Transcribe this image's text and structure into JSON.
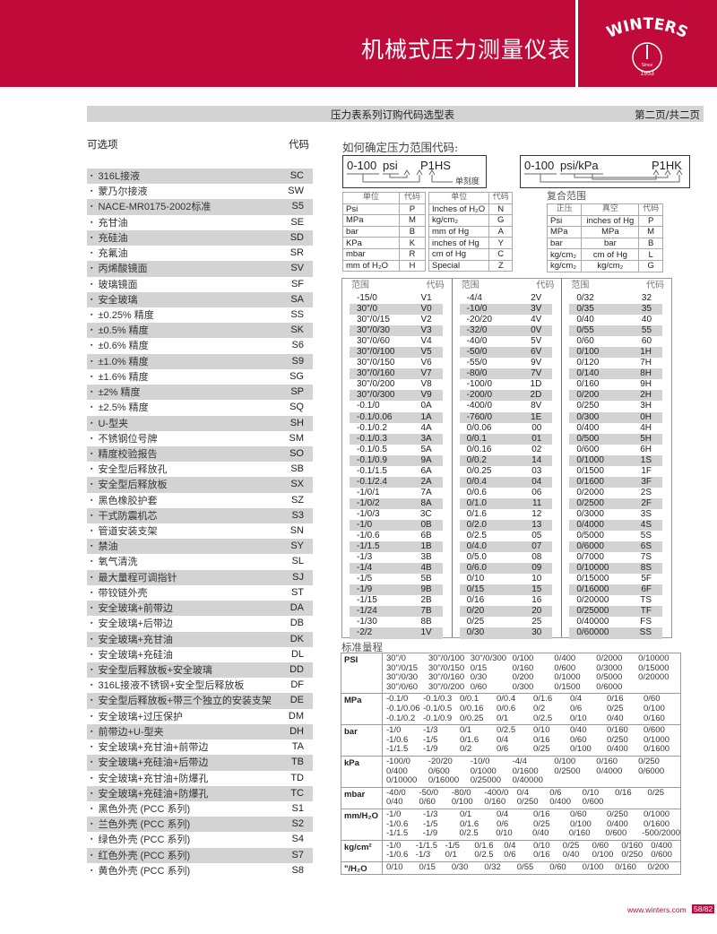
{
  "header": {
    "title": "机械式压力测量仪表",
    "logo_text": "WINTERS",
    "logo_since": "Since",
    "logo_year": "1953",
    "brand_color": "#bf0a3a"
  },
  "subbar": {
    "title": "压力表系列订购代码选型表",
    "page": "第二页/共二页"
  },
  "options": {
    "col_label": "可选项",
    "col_code": "代码",
    "items": [
      {
        "label": "316L接液",
        "code": "SC"
      },
      {
        "label": "蒙乃尔接液",
        "code": "SW"
      },
      {
        "label": "NACE-MR0175-2002标准",
        "code": "S5"
      },
      {
        "label": "充甘油",
        "code": "SE"
      },
      {
        "label": "充硅油",
        "code": "SD"
      },
      {
        "label": "充氟油",
        "code": "SR"
      },
      {
        "label": "丙烯酸镜面",
        "code": "SV"
      },
      {
        "label": "玻璃镜面",
        "code": "SF"
      },
      {
        "label": "安全玻璃",
        "code": "SA"
      },
      {
        "label": "±0.25% 精度",
        "code": "SS"
      },
      {
        "label": "±0.5% 精度",
        "code": "SK"
      },
      {
        "label": "±0.6% 精度",
        "code": "S6"
      },
      {
        "label": "±1.0% 精度",
        "code": "S9"
      },
      {
        "label": "±1.6% 精度",
        "code": "SG"
      },
      {
        "label": "±2% 精度",
        "code": "SP"
      },
      {
        "label": "±2.5% 精度",
        "code": "SQ"
      },
      {
        "label": "U-型夹",
        "code": "SH"
      },
      {
        "label": "不锈钢位号牌",
        "code": "SM"
      },
      {
        "label": "精度校验报告",
        "code": "SO"
      },
      {
        "label": "安全型后释放孔",
        "code": "SB"
      },
      {
        "label": "安全型后释放板",
        "code": "SX"
      },
      {
        "label": "黑色橡胶护套",
        "code": "SZ"
      },
      {
        "label": "干式防震机芯",
        "code": "S3"
      },
      {
        "label": "管道安装支架",
        "code": "SN"
      },
      {
        "label": "禁油",
        "code": "SY"
      },
      {
        "label": "氧气清洗",
        "code": "SL"
      },
      {
        "label": "最大量程可调指针",
        "code": "SJ"
      },
      {
        "label": "带铰链外壳",
        "code": "ST"
      },
      {
        "label": "安全玻璃+前带边",
        "code": "DA"
      },
      {
        "label": "安全玻璃+后带边",
        "code": "DB"
      },
      {
        "label": "安全玻璃+充甘油",
        "code": "DK"
      },
      {
        "label": "安全玻璃+充硅油",
        "code": "DL"
      },
      {
        "label": "安全型后释放板+安全玻璃",
        "code": "DD"
      },
      {
        "label": "316L接液不锈钢+安全型后释放板",
        "code": "DF"
      },
      {
        "label": "安全型后释放板+带三个独立的安装支架",
        "code": "DE"
      },
      {
        "label": "安全玻璃+过压保护",
        "code": "DM"
      },
      {
        "label": "前带边+U-型夹",
        "code": "DH"
      },
      {
        "label": "安全玻璃+充甘油+前带边",
        "code": "TA"
      },
      {
        "label": "安全玻璃+充硅油+后带边",
        "code": "TB"
      },
      {
        "label": "安全玻璃+充甘油+防爆孔",
        "code": "TD"
      },
      {
        "label": "安全玻璃+充硅油+防爆孔",
        "code": "TC"
      },
      {
        "label": "黑色外壳 (PCC 系列)",
        "code": "S1"
      },
      {
        "label": "兰色外壳 (PCC 系列)",
        "code": "S2"
      },
      {
        "label": "绿色外壳 (PCC 系列)",
        "code": "S4"
      },
      {
        "label": "红色外壳 (PCC 系列)",
        "code": "S7"
      },
      {
        "label": "黄色外壳 (PCC 系列)",
        "code": "S8"
      }
    ]
  },
  "howto": {
    "title": "如何确定压力范围代码:",
    "example1": {
      "range": "0-100",
      "unit": "psi",
      "code": "P1HS",
      "note": "单刻度"
    },
    "example2": {
      "range": "0-100",
      "unit": "psi/kPa",
      "code": "P1HK"
    }
  },
  "unit_table1": {
    "headers": [
      "单位",
      "代码"
    ],
    "rows": [
      [
        "Psi",
        "P"
      ],
      [
        "MPa",
        "M"
      ],
      [
        "bar",
        "B"
      ],
      [
        "KPa",
        "K"
      ],
      [
        "mbar",
        "R"
      ],
      [
        "mm of H₂O",
        "H"
      ]
    ]
  },
  "unit_table2": {
    "headers": [
      "单位",
      "代码"
    ],
    "rows": [
      [
        "Inches of H₂O",
        "N"
      ],
      [
        "kg/cm₂",
        "G"
      ],
      [
        "mm of Hg",
        "A"
      ],
      [
        "inches of Hg",
        "Y"
      ],
      [
        "cm of Hg",
        "C"
      ],
      [
        "Special",
        "Z"
      ]
    ]
  },
  "compound": {
    "title": "复合范围",
    "headers": [
      "正压",
      "真空",
      "代码"
    ],
    "rows": [
      [
        "Psi",
        "inches of Hg",
        "P"
      ],
      [
        "MPa",
        "MPa",
        "M"
      ],
      [
        "bar",
        "bar",
        "B"
      ],
      [
        "kg/cm₂",
        "cm of Hg",
        "L"
      ],
      [
        "kg/cm₂",
        "kg/cm₂",
        "G"
      ]
    ]
  },
  "range_table": {
    "headers": [
      "范围",
      "代码"
    ],
    "groups": [
      [
        [
          "-15/0",
          "V1"
        ],
        [
          "30\"/0",
          "V0"
        ],
        [
          "30\"/0/15",
          "V2"
        ],
        [
          "30\"/0/30",
          "V3"
        ],
        [
          "30\"/0/60",
          "V4"
        ],
        [
          "30\"/0/100",
          "V5"
        ],
        [
          "30\"/0/150",
          "V6"
        ],
        [
          "30\"/0/160",
          "V7"
        ],
        [
          "30\"/0/200",
          "V8"
        ],
        [
          "30\"/0/300",
          "V9"
        ],
        [
          "-0.1/0",
          "0A"
        ],
        [
          "-0.1/0.06",
          "1A"
        ],
        [
          "-0.1/0.2",
          "4A"
        ],
        [
          "-0.1/0.3",
          "3A"
        ],
        [
          "-0.1/0.5",
          "5A"
        ],
        [
          "-0.1/0.9",
          "9A"
        ],
        [
          "-0.1/1.5",
          "6A"
        ],
        [
          "-0.1/2.4",
          "2A"
        ],
        [
          "-1/0/1",
          "7A"
        ],
        [
          "-1/0/2",
          "8A"
        ],
        [
          "-1/0/3",
          "3C"
        ],
        [
          "-1/0",
          "0B"
        ],
        [
          "-1/0.6",
          "6B"
        ],
        [
          "-1/1.5",
          "1B"
        ],
        [
          "-1/3",
          "3B"
        ],
        [
          "-1/4",
          "4B"
        ],
        [
          "-1/5",
          "5B"
        ],
        [
          "-1/9",
          "9B"
        ],
        [
          "-1/15",
          "2B"
        ],
        [
          "-1/24",
          "7B"
        ],
        [
          "-1/30",
          "8B"
        ],
        [
          "-2/2",
          "1V"
        ]
      ],
      [
        [
          "-4/4",
          "2V"
        ],
        [
          "-10/0",
          "3V"
        ],
        [
          "-20/20",
          "4V"
        ],
        [
          "-32/0",
          "0V"
        ],
        [
          "-40/0",
          "5V"
        ],
        [
          "-50/0",
          "6V"
        ],
        [
          "-55/0",
          "9V"
        ],
        [
          "-80/0",
          "7V"
        ],
        [
          "-100/0",
          "1D"
        ],
        [
          "-200/0",
          "2D"
        ],
        [
          "-400/0",
          "8V"
        ],
        [
          "-760/0",
          "1E"
        ],
        [
          "0/0.06",
          "00"
        ],
        [
          "0/0.1",
          "01"
        ],
        [
          "0/0.16",
          "02"
        ],
        [
          "0/0.2",
          "14"
        ],
        [
          "0/0.25",
          "03"
        ],
        [
          "0/0.4",
          "04"
        ],
        [
          "0/0.6",
          "06"
        ],
        [
          "0/1.0",
          "11"
        ],
        [
          "0/1.6",
          "12"
        ],
        [
          "0/2.0",
          "13"
        ],
        [
          "0/2.5",
          "05"
        ],
        [
          "0/4.0",
          "07"
        ],
        [
          "0/5.0",
          "08"
        ],
        [
          "0/6.0",
          "09"
        ],
        [
          "0/10",
          "10"
        ],
        [
          "0/15",
          "15"
        ],
        [
          "0/16",
          "16"
        ],
        [
          "0/20",
          "20"
        ],
        [
          "0/25",
          "25"
        ],
        [
          "0/30",
          "30"
        ]
      ],
      [
        [
          "0/32",
          "32"
        ],
        [
          "0/35",
          "35"
        ],
        [
          "0/40",
          "40"
        ],
        [
          "0/55",
          "55"
        ],
        [
          "0/60",
          "60"
        ],
        [
          "0/100",
          "1H"
        ],
        [
          "0/120",
          "7H"
        ],
        [
          "0/140",
          "8H"
        ],
        [
          "0/160",
          "9H"
        ],
        [
          "0/200",
          "2H"
        ],
        [
          "0/250",
          "3H"
        ],
        [
          "0/300",
          "0H"
        ],
        [
          "0/400",
          "4H"
        ],
        [
          "0/500",
          "5H"
        ],
        [
          "0/600",
          "6H"
        ],
        [
          "0/1000",
          "1S"
        ],
        [
          "0/1500",
          "1F"
        ],
        [
          "0/1600",
          "3F"
        ],
        [
          "0/2000",
          "2S"
        ],
        [
          "0/2500",
          "2F"
        ],
        [
          "0/3000",
          "3S"
        ],
        [
          "0/4000",
          "4S"
        ],
        [
          "0/5000",
          "5S"
        ],
        [
          "0/6000",
          "6S"
        ],
        [
          "0/7000",
          "7S"
        ],
        [
          "0/10000",
          "8S"
        ],
        [
          "0/15000",
          "5F"
        ],
        [
          "0/16000",
          "6F"
        ],
        [
          "0/20000",
          "TS"
        ],
        [
          "0/25000",
          "TF"
        ],
        [
          "0/40000",
          "FS"
        ],
        [
          "0/60000",
          "SS"
        ]
      ]
    ]
  },
  "standard_ranges": {
    "title": "标准量程",
    "rows": [
      {
        "unit": "PSI",
        "lines": [
          [
            "30\"/0",
            "30\"/0/100",
            "30\"/0/300",
            "0/100",
            "0/400",
            "0/2000",
            "0/10000"
          ],
          [
            "30\"/0/15",
            "30\"/0/150",
            "0/15",
            "0/160",
            "0/600",
            "0/3000",
            "0/15000"
          ],
          [
            "30\"/0/30",
            "30\"/0/160",
            "0/30",
            "0/200",
            "0/1000",
            "0/5000",
            "0/20000"
          ],
          [
            "30\"/0/60",
            "30\"/0/200",
            "0/60",
            "0/300",
            "0/1500",
            "0/6000",
            ""
          ]
        ]
      },
      {
        "unit": "MPa",
        "lines": [
          [
            "-0.1/0",
            "-0.1/0.3",
            "0/0.1",
            "0/0.4",
            "0/1.6",
            "0/4",
            "0/16",
            "0/60"
          ],
          [
            "-0.1/0.06",
            "-0.1/0.5",
            "0/0.16",
            "0/0.6",
            "0/2",
            "0/6",
            "0/25",
            "0/100"
          ],
          [
            "-0.1/0.2",
            "-0.1/0.9",
            "0/0.25",
            "0/1",
            "0/2.5",
            "0/10",
            "0/40",
            "0/160"
          ]
        ]
      },
      {
        "unit": "bar",
        "lines": [
          [
            "-1/0",
            "-1/3",
            "0/1",
            "0/2.5",
            "0/10",
            "0/40",
            "0/160",
            "0/600"
          ],
          [
            "-1/0.6",
            "-1/5",
            "0/1.6",
            "0/4",
            "0/16",
            "0/60",
            "0/250",
            "0/1000"
          ],
          [
            "-1/1.5",
            "-1/9",
            "0/2",
            "0/6",
            "0/25",
            "0/100",
            "0/400",
            "0/1600"
          ]
        ]
      },
      {
        "unit": "kPa",
        "lines": [
          [
            "-100/0",
            "-20/20",
            "-10/0",
            "-4/4",
            "0/100",
            "0/160",
            "0/250"
          ],
          [
            "0/400",
            "0/600",
            "0/1000",
            "0/1600",
            "0/2500",
            "0/4000",
            "0/6000"
          ],
          [
            "0/10000",
            "0/16000",
            "0/25000",
            "0/40000",
            "",
            "",
            ""
          ]
        ]
      },
      {
        "unit": "mbar",
        "lines": [
          [
            "-40/0",
            "-50/0",
            "-80/0",
            "-400/0",
            "0/4",
            "0/6",
            "0/10",
            "0/16",
            "0/25"
          ],
          [
            "0/40",
            "0/60",
            "0/100",
            "0/160",
            "0/250",
            "0/400",
            "0/600",
            "",
            ""
          ]
        ]
      },
      {
        "unit": "mm/H₂O",
        "lines": [
          [
            "-1/0",
            "-1/3",
            "0/1",
            "0/4",
            "0/16",
            "0/60",
            "0/250",
            "0/1000"
          ],
          [
            "-1/0.6",
            "-1/5",
            "0/1.6",
            "0/6",
            "0/25",
            "0/100",
            "0/400",
            "0/1600"
          ],
          [
            "-1/1.5",
            "-1/9",
            "0/2.5",
            "0/10",
            "0/40",
            "0/160",
            "0/600",
            "-500/2000"
          ]
        ]
      },
      {
        "unit": "kg/cm²",
        "lines": [
          [
            "-1/0",
            "-1/1.5",
            "-1/5",
            "0/1.6",
            "0/4",
            "0/10",
            "0/25",
            "0/60",
            "0/160",
            "0/400"
          ],
          [
            "-1/0.6",
            "-1/3",
            "0/1",
            "0/2.5",
            "0/6",
            "0/16",
            "0/40",
            "0/100",
            "0/250",
            "0/600"
          ]
        ]
      },
      {
        "unit": "\"/H₂O",
        "lines": [
          [
            "0/10",
            "0/15",
            "0/30",
            "0/32",
            "0/55",
            "0/60",
            "0/100",
            "0/160",
            "0/200"
          ]
        ]
      }
    ]
  },
  "footer": {
    "url": "www.winters.com",
    "page": "58/82"
  }
}
